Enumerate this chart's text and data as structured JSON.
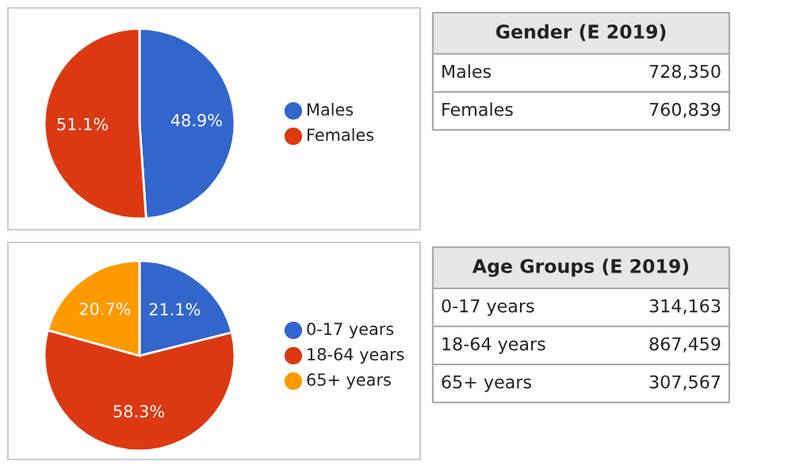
{
  "chart_data": [
    {
      "type": "pie",
      "categories": [
        "Males",
        "Females"
      ],
      "values": [
        48.9,
        51.1
      ],
      "colors": [
        "#3366cc",
        "#dc3912"
      ],
      "legend": "right",
      "value_labels": [
        "48.9%",
        "51.1%"
      ]
    },
    {
      "type": "other",
      "title": "Gender (E 2019)",
      "categories": [
        "Males",
        "Females"
      ],
      "values": [
        728350,
        760839
      ],
      "value_labels": [
        "728,350",
        "760,839"
      ]
    },
    {
      "type": "pie",
      "categories": [
        "0-17 years",
        "18-64 years",
        "65+ years"
      ],
      "values": [
        21.1,
        58.3,
        20.7
      ],
      "colors": [
        "#3366cc",
        "#dc3912",
        "#ff9900"
      ],
      "legend": "right",
      "value_labels": [
        "21.1%",
        "58.3%",
        "20.7%"
      ]
    },
    {
      "type": "other",
      "title": "Age Groups (E 2019)",
      "categories": [
        "0-17 years",
        "18-64 years",
        "65+ years"
      ],
      "values": [
        314163,
        867459,
        307567
      ],
      "value_labels": [
        "314,163",
        "867,459",
        "307,567"
      ]
    }
  ]
}
